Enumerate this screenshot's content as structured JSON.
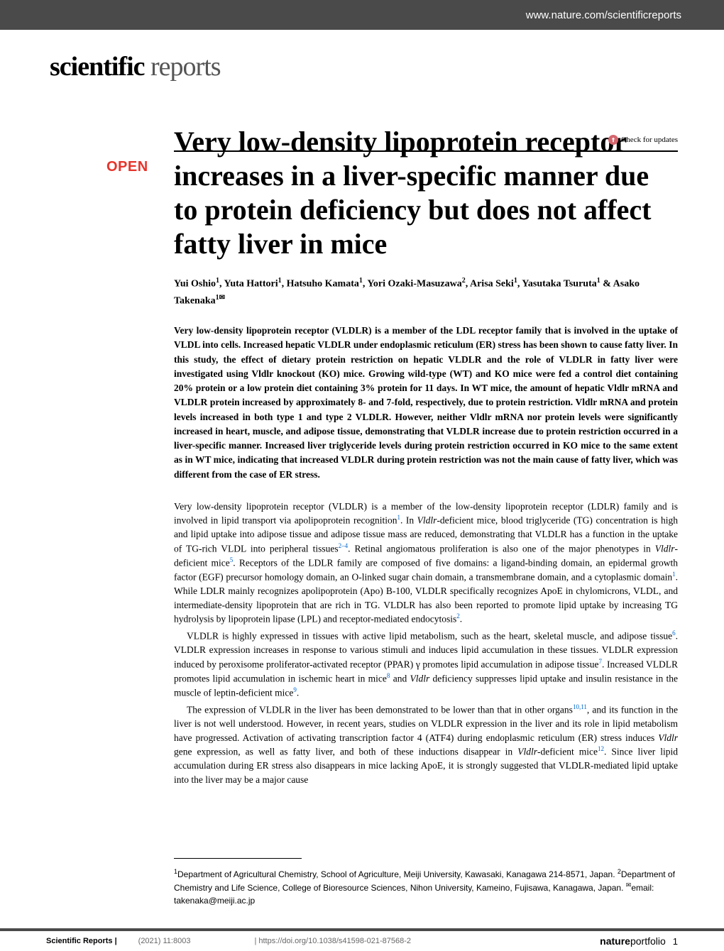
{
  "header": {
    "url": "www.nature.com/scientificreports"
  },
  "journal": {
    "bold": "scientific",
    "light": " reports"
  },
  "check_updates": "Check for updates",
  "badge": "OPEN",
  "title": "Very low-density lipoprotein receptor increases in a liver-specific manner due to protein deficiency but does not affect fatty liver in mice",
  "authors_html": "Yui Oshio<sup>1</sup>, Yuta Hattori<sup>1</sup>, Hatsuho Kamata<sup>1</sup>, Yori Ozaki-Masuzawa<sup>2</sup>, Arisa Seki<sup>1</sup>, Yasutaka Tsuruta<sup>1</sup> & Asako Takenaka<sup>1✉</sup>",
  "abstract": "Very low-density lipoprotein receptor (VLDLR) is a member of the LDL receptor family that is involved in the uptake of VLDL into cells. Increased hepatic VLDLR under endoplasmic reticulum (ER) stress has been shown to cause fatty liver. In this study, the effect of dietary protein restriction on hepatic VLDLR and the role of VLDLR in fatty liver were investigated using Vldlr knockout (KO) mice. Growing wild-type (WT) and KO mice were fed a control diet containing 20% protein or a low protein diet containing 3% protein for 11 days. In WT mice, the amount of hepatic Vldlr mRNA and VLDLR protein increased by approximately 8- and 7-fold, respectively, due to protein restriction. Vldlr mRNA and protein levels increased in both type 1 and type 2 VLDLR. However, neither Vldlr mRNA nor protein levels were significantly increased in heart, muscle, and adipose tissue, demonstrating that VLDLR increase due to protein restriction occurred in a liver-specific manner. Increased liver triglyceride levels during protein restriction occurred in KO mice to the same extent as in WT mice, indicating that increased VLDLR during protein restriction was not the main cause of fatty liver, which was different from the case of ER stress.",
  "paragraphs": [
    "Very low-density lipoprotein receptor (VLDLR) is a member of the low-density lipoprotein receptor (LDLR) family and is involved in lipid transport via apolipoprotein recognition<sup class='ref'>1</sup>. In <span class='italic'>Vldlr</span>-deficient mice, blood triglyceride (TG) concentration is high and lipid uptake into adipose tissue and adipose tissue mass are reduced, demonstrating that VLDLR has a function in the uptake of TG-rich VLDL into peripheral tissues<sup class='ref'>2–4</sup>. Retinal angiomatous proliferation is also one of the major phenotypes in <span class='italic'>Vldlr</span>-deficient mice<sup class='ref'>5</sup>. Receptors of the LDLR family are composed of five domains: a ligand-binding domain, an epidermal growth factor (EGF) precursor homology domain, an O-linked sugar chain domain, a transmembrane domain, and a cytoplasmic domain<sup class='ref'>1</sup>. While LDLR mainly recognizes apolipoprotein (Apo) B-100, VLDLR specifically recognizes ApoE in chylomicrons, VLDL, and intermediate-density lipoprotein that are rich in TG. VLDLR has also been reported to promote lipid uptake by increasing TG hydrolysis by lipoprotein lipase (LPL) and receptor-mediated endocytosis<sup class='ref'>2</sup>.",
    "VLDLR is highly expressed in tissues with active lipid metabolism, such as the heart, skeletal muscle, and adipose tissue<sup class='ref'>6</sup>. VLDLR expression increases in response to various stimuli and induces lipid accumulation in these tissues. VLDLR expression induced by peroxisome proliferator-activated receptor (PPAR) γ promotes lipid accumulation in adipose tissue<sup class='ref'>7</sup>. Increased VLDLR promotes lipid accumulation in ischemic heart in mice<sup class='ref'>8</sup> and <span class='italic'>Vldlr</span> deficiency suppresses lipid uptake and insulin resistance in the muscle of leptin-deficient mice<sup class='ref'>9</sup>.",
    "The expression of VLDLR in the liver has been demonstrated to be lower than that in other organs<sup class='ref'>10,11</sup>, and its function in the liver is not well understood. However, in recent years, studies on VLDLR expression in the liver and its role in lipid metabolism have progressed. Activation of activating transcription factor 4 (ATF4) during endoplasmic reticulum (ER) stress induces <span class='italic'>Vldlr</span> gene expression, as well as fatty liver, and both of these inductions disappear in <span class='italic'>Vldlr</span>-deficient mice<sup class='ref'>12</sup>. Since liver lipid accumulation during ER stress also disappears in mice lacking ApoE, it is strongly suggested that VLDLR-mediated lipid uptake into the liver may be a major cause"
  ],
  "affiliations": "<sup>1</sup>Department of Agricultural Chemistry, School of Agriculture, Meiji University, Kawasaki, Kanagawa 214-8571, Japan. <sup>2</sup>Department of Chemistry and Life Science, College of Bioresource Sciences, Nihon University, Kameino, Fujisawa, Kanagawa, Japan. <sup>✉</sup>email: takenaka@meiji.ac.jp",
  "footer": {
    "journal": "Scientific Reports |",
    "citation": "(2021) 11:8003",
    "doi": "| https://doi.org/10.1038/s41598-021-87568-2",
    "nature_bold": "nature",
    "nature_light": "portfolio",
    "page": "1"
  },
  "colors": {
    "header_bg": "#4a4a4a",
    "open_color": "#e6342a",
    "ref_color": "#0066cc",
    "check_icon_bg": "#d4666e"
  }
}
